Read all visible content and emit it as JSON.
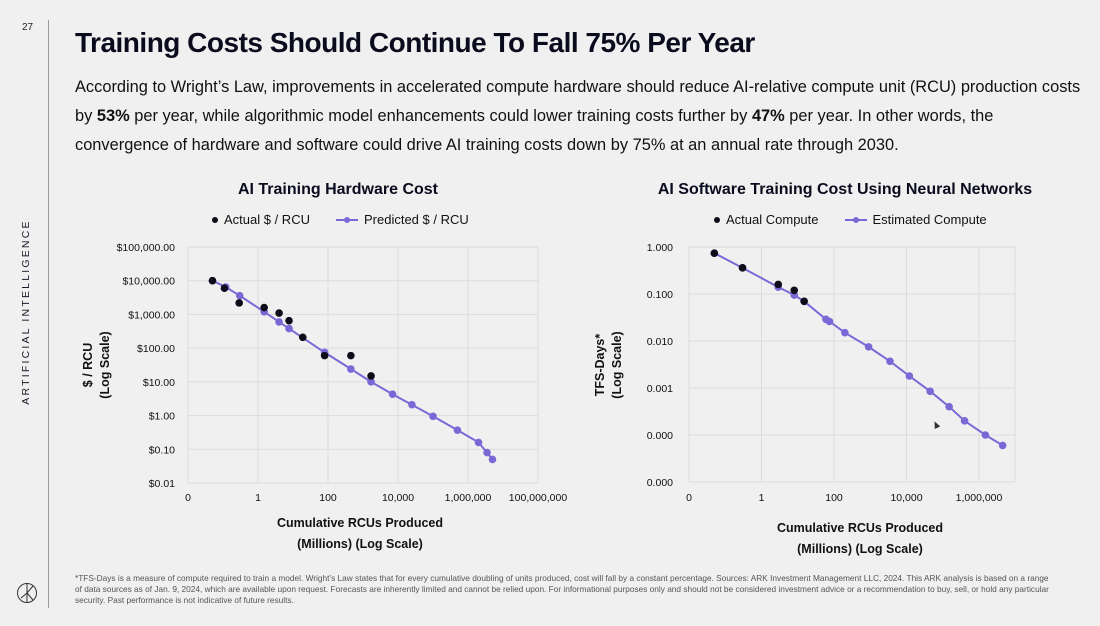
{
  "page_number": "27",
  "section_label": "ARTIFICIAL INTELLIGENCE",
  "title": "Training Costs Should Continue To Fall 75% Per Year",
  "intro": {
    "part1": "According to Wright’s Law, improvements in accelerated compute hardware should reduce AI-relative compute unit (RCU) production costs by ",
    "bold1": "53%",
    "part2": " per year, while algorithmic model enhancements could lower training costs further by ",
    "bold2": "47%",
    "part3": " per year. In other words, the convergence of hardware and software could drive AI training costs down by 75% at an annual rate through 2030."
  },
  "footnote": "*TFS-Days is a measure of compute required to train a model. Wright’s Law states that for every cumulative doubling of units produced, cost will fall by a constant percentage. Sources: ARK Investment Management LLC, 2024. This ARK analysis is based on a range of data sources as of Jan. 9, 2024, which are available upon request. Forecasts are inherently limited and cannot be relied upon. For informational purposes only and should not be considered investment advice or a recommendation to buy, sell, or hold any particular security. Past performance is not indicative of future results.",
  "colors": {
    "actual": "#0d0d1a",
    "predicted": "#7b68d6",
    "grid": "#dcdcdc"
  },
  "chart_data": [
    {
      "type": "scatter",
      "title": "AI Training Hardware Cost",
      "xlabel": "Cumulative RCUs Produced (Millions) (Log Scale)",
      "xlabel_lines": [
        "Cumulative RCUs Produced",
        "(Millions) (Log Scale)"
      ],
      "ylabel": "$ / RCU (Log Scale)",
      "ylabel_lines": [
        "$ / RCU",
        "(Log Scale)"
      ],
      "x_scale": "log",
      "y_scale": "log",
      "xlim": [
        0.01,
        100000000
      ],
      "ylim": [
        0.01,
        100000
      ],
      "x_ticks": [
        0.01,
        1,
        100,
        10000,
        1000000,
        100000000
      ],
      "x_tick_labels": [
        "0",
        "1",
        "100",
        "10,000",
        "1,000,000",
        "100,000,000"
      ],
      "y_ticks": [
        100000,
        10000,
        1000,
        100,
        10,
        1,
        0.1,
        0.01
      ],
      "y_tick_labels": [
        "$100,000.00",
        "$10,000.00",
        "$1,000.00",
        "$100.00",
        "$10.00",
        "$1.00",
        "$0.10",
        "$0.01"
      ],
      "grid": true,
      "legend_position": "top-center",
      "series": [
        {
          "name": "Actual $ / RCU",
          "kind": "scatter",
          "x": [
            0.05,
            0.11,
            0.29,
            1.5,
            4,
            7.7,
            19,
            80,
            450,
            1700
          ],
          "y": [
            10000,
            6000,
            2200,
            1600,
            1100,
            650,
            210,
            60,
            60,
            15
          ]
        },
        {
          "name": "Predicted $ / RCU",
          "kind": "line-markers",
          "x": [
            0.05,
            0.12,
            0.3,
            1.5,
            4,
            7.7,
            80,
            450,
            1700,
            7000,
            25000,
            100000,
            500000,
            2000000,
            3500000,
            5000000
          ],
          "y": [
            10000,
            6500,
            3600,
            1200,
            600,
            380,
            75,
            24,
            10,
            4.3,
            2.1,
            0.95,
            0.37,
            0.16,
            0.08,
            0.05
          ]
        }
      ]
    },
    {
      "type": "scatter",
      "title": "AI Software Training Cost Using Neural Networks",
      "xlabel": "Cumulative RCUs Produced (Millions) (Log Scale)",
      "xlabel_lines": [
        "Cumulative RCUs Produced",
        "(Millions) (Log Scale)"
      ],
      "ylabel": "TFS-Days* (Log Scale)",
      "ylabel_lines": [
        "TFS-Days*",
        "(Log Scale)"
      ],
      "x_scale": "log",
      "y_scale": "log",
      "xlim": [
        0.01,
        5000000
      ],
      "ylim": [
        1e-05,
        1
      ],
      "x_ticks": [
        0.01,
        1,
        100,
        10000,
        1000000
      ],
      "x_tick_labels": [
        "0",
        "1",
        "100",
        "10,000",
        "1,000,000"
      ],
      "y_ticks": [
        1,
        0.1,
        0.01,
        0.001,
        0.0001,
        1e-05
      ],
      "y_tick_labels": [
        "1.000",
        "0.100",
        "0.010",
        "0.001",
        "0.000",
        "0.000"
      ],
      "grid": true,
      "legend_position": "top-center",
      "series": [
        {
          "name": "Actual Compute",
          "kind": "scatter",
          "x": [
            0.05,
            0.3,
            2.9,
            8,
            15
          ],
          "y": [
            0.74,
            0.36,
            0.16,
            0.12,
            0.07
          ]
        },
        {
          "name": "Estimated Compute",
          "kind": "line-markers",
          "x": [
            0.05,
            0.3,
            2.9,
            8,
            15,
            60,
            75,
            200,
            900,
            3500,
            12000,
            45000,
            150000,
            400000,
            1500000,
            4500000
          ],
          "y": [
            0.74,
            0.36,
            0.14,
            0.095,
            0.07,
            0.029,
            0.026,
            0.015,
            0.0075,
            0.0037,
            0.0018,
            0.00085,
            0.0004,
            0.0002,
            0.0001,
            6e-05
          ]
        }
      ]
    }
  ]
}
